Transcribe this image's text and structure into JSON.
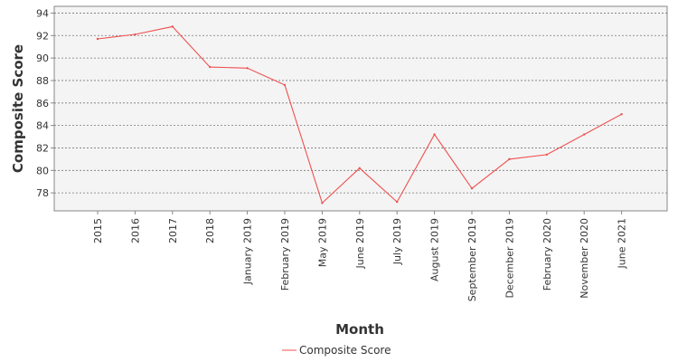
{
  "chart_data": {
    "type": "line",
    "title": "",
    "xlabel": "Month",
    "ylabel": "Composite Score",
    "categories": [
      "2015",
      "2016",
      "2017",
      "2018",
      "January 2019",
      "February 2019",
      "May 2019",
      "June 2019",
      "July 2019",
      "August 2019",
      "September 2019",
      "December 2019",
      "February 2020",
      "November 2020",
      "June 2021"
    ],
    "series": [
      {
        "name": "Composite Score",
        "color": "#f05050",
        "values": [
          91.7,
          92.1,
          92.8,
          89.2,
          89.1,
          87.6,
          77.1,
          80.2,
          77.2,
          83.2,
          78.4,
          81.0,
          81.4,
          83.2,
          85.0
        ]
      }
    ],
    "ylim": [
      76.4,
      94.6
    ],
    "yticks": [
      78,
      80,
      82,
      84,
      86,
      88,
      90,
      92,
      94
    ],
    "grid": true,
    "legend_position": "bottom"
  }
}
